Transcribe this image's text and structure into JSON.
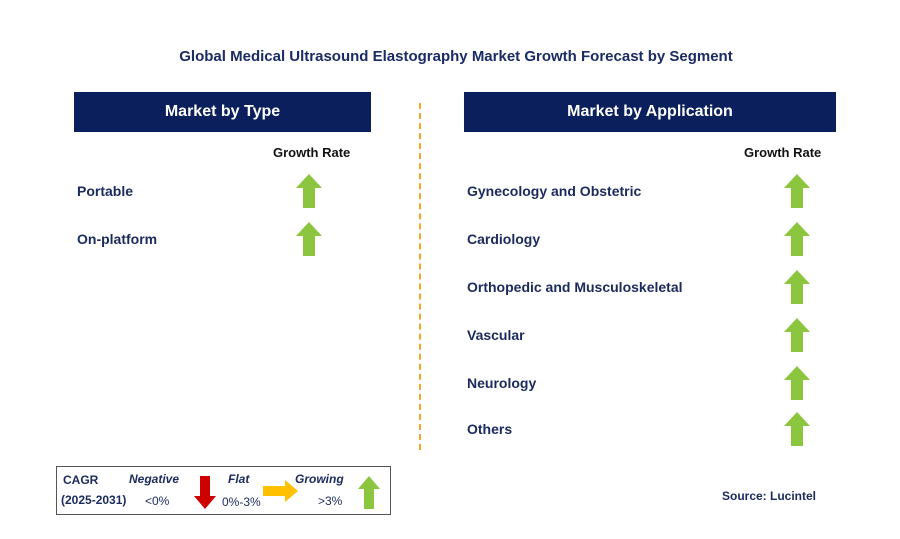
{
  "title": "Global Medical Ultrasound Elastography Market Growth Forecast by Segment",
  "left_panel": {
    "header": "Market by Type",
    "growth_label": "Growth Rate",
    "items": [
      {
        "label": "Portable",
        "trend": "growing"
      },
      {
        "label": "On-platform",
        "trend": "growing"
      }
    ]
  },
  "right_panel": {
    "header": "Market by Application",
    "growth_label": "Growth Rate",
    "items": [
      {
        "label": "Gynecology and Obstetric",
        "trend": "growing"
      },
      {
        "label": "Cardiology",
        "trend": "growing"
      },
      {
        "label": "Orthopedic and Musculoskeletal",
        "trend": "growing"
      },
      {
        "label": "Vascular",
        "trend": "growing"
      },
      {
        "label": "Neurology",
        "trend": "growing"
      },
      {
        "label": "Others",
        "trend": "growing"
      }
    ]
  },
  "legend": {
    "cagr_label": "CAGR",
    "period": "(2025-2031)",
    "negative_label": "Negative",
    "negative_range": "<0%",
    "flat_label": "Flat",
    "flat_range": "0%-3%",
    "growing_label": "Growing",
    "growing_range": ">3%"
  },
  "source": "Source: Lucintel",
  "colors": {
    "header_bg": "#0b1f5c",
    "growing": "#8cc63f",
    "negative": "#cc0000",
    "flat": "#ffc000",
    "divider": "#f5a623"
  },
  "chart_data": {
    "type": "table",
    "title": "Global Medical Ultrasound Elastography Market Growth Forecast by Segment",
    "segments": [
      {
        "name": "Market by Type",
        "categories": [
          "Portable",
          "On-platform"
        ],
        "growth": [
          "Growing",
          "Growing"
        ]
      },
      {
        "name": "Market by Application",
        "categories": [
          "Gynecology and Obstetric",
          "Cardiology",
          "Orthopedic and Musculoskeletal",
          "Vascular",
          "Neurology",
          "Others"
        ],
        "growth": [
          "Growing",
          "Growing",
          "Growing",
          "Growing",
          "Growing",
          "Growing"
        ]
      }
    ]
  }
}
